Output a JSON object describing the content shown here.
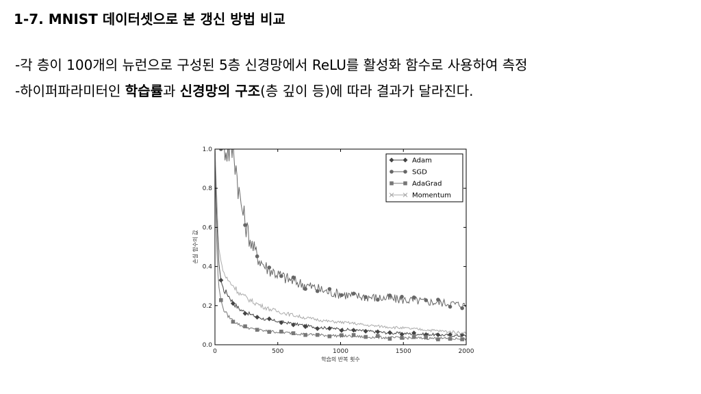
{
  "slide": {
    "title": "1-7. MNIST 데이터셋으로 본 갱신 방법 비교",
    "bullet1": "-각 층이 100개의 뉴런으로 구성된 5층 신경망에서 ReLU를 활성화 함수로 사용하여 측정",
    "bullet2": {
      "part1": "-하이퍼파라미터인 ",
      "bold1": "학습률",
      "part2": "과 ",
      "bold2": "신경망의 구조",
      "part3": "(층 깊이 등)에 따라 결과가 달라진다."
    }
  },
  "chart_data": {
    "type": "line",
    "xlabel": "학습의 반복 횟수",
    "ylabel": "손실 함수의 값",
    "xlim": [
      0,
      2000
    ],
    "ylim": [
      0.0,
      1.0
    ],
    "xticks": [
      "0",
      "500",
      "1000",
      "1500",
      "2000"
    ],
    "yticks": [
      "0.0",
      "0.2",
      "0.4",
      "0.6",
      "0.8",
      "1.0"
    ],
    "legend_position": "top-right",
    "series": [
      {
        "name": "Adam",
        "marker": "diamond",
        "color": "#444444",
        "x": [
          0,
          10,
          20,
          30,
          50,
          70,
          100,
          150,
          200,
          300,
          400,
          500,
          600,
          700,
          800,
          900,
          1000,
          1100,
          1200,
          1300,
          1400,
          1500,
          1600,
          1700,
          1800,
          1900,
          2000
        ],
        "y": [
          1.0,
          0.78,
          0.55,
          0.42,
          0.32,
          0.28,
          0.26,
          0.21,
          0.18,
          0.15,
          0.13,
          0.12,
          0.11,
          0.1,
          0.09,
          0.085,
          0.08,
          0.075,
          0.07,
          0.065,
          0.06,
          0.058,
          0.055,
          0.053,
          0.05,
          0.048,
          0.045
        ]
      },
      {
        "name": "SGD",
        "marker": "circle",
        "color": "#666666",
        "x": [
          0,
          100,
          150,
          170,
          200,
          250,
          300,
          350,
          400,
          500,
          600,
          700,
          800,
          900,
          1000,
          1100,
          1200,
          1300,
          1400,
          1500,
          1600,
          1700,
          1800,
          1900,
          2000
        ],
        "y": [
          1.0,
          1.0,
          1.0,
          0.9,
          0.74,
          0.6,
          0.5,
          0.44,
          0.4,
          0.36,
          0.33,
          0.31,
          0.29,
          0.27,
          0.26,
          0.25,
          0.245,
          0.24,
          0.235,
          0.23,
          0.225,
          0.22,
          0.215,
          0.21,
          0.2
        ]
      },
      {
        "name": "AdaGrad",
        "marker": "square",
        "color": "#777777",
        "x": [
          0,
          10,
          20,
          30,
          50,
          70,
          100,
          150,
          200,
          300,
          400,
          500,
          600,
          700,
          800,
          900,
          1000,
          1100,
          1200,
          1300,
          1400,
          1500,
          1600,
          1700,
          1800,
          1900,
          2000
        ],
        "y": [
          1.0,
          0.6,
          0.4,
          0.3,
          0.22,
          0.18,
          0.15,
          0.12,
          0.1,
          0.08,
          0.07,
          0.065,
          0.06,
          0.055,
          0.05,
          0.048,
          0.045,
          0.043,
          0.04,
          0.038,
          0.036,
          0.035,
          0.034,
          0.033,
          0.032,
          0.031,
          0.03
        ]
      },
      {
        "name": "Momentum",
        "marker": "x",
        "color": "#aaaaaa",
        "x": [
          0,
          10,
          20,
          30,
          50,
          70,
          100,
          150,
          200,
          300,
          400,
          500,
          600,
          700,
          800,
          900,
          1000,
          1100,
          1200,
          1300,
          1400,
          1500,
          1600,
          1700,
          1800,
          1900,
          2000
        ],
        "y": [
          1.0,
          0.85,
          0.65,
          0.5,
          0.42,
          0.37,
          0.33,
          0.3,
          0.26,
          0.22,
          0.19,
          0.17,
          0.155,
          0.14,
          0.13,
          0.12,
          0.115,
          0.11,
          0.1,
          0.095,
          0.09,
          0.085,
          0.08,
          0.075,
          0.07,
          0.065,
          0.06
        ]
      }
    ]
  }
}
